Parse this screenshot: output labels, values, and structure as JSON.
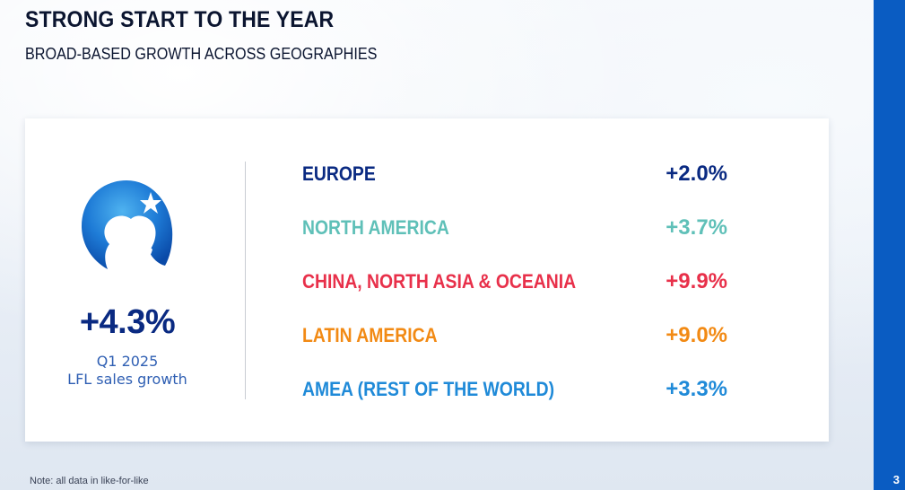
{
  "header": {
    "title": "STRONG START TO THE YEAR",
    "subtitle": "BROAD-BASED GROWTH ACROSS GEOGRAPHIES"
  },
  "summary": {
    "logo_icon": "danone-child-star-logo-icon",
    "value": "+4.3%",
    "period": "Q1 2025",
    "caption": "LFL sales growth"
  },
  "regions": [
    {
      "name": "EUROPE",
      "value": "+2.0%",
      "color": "#0a2a82"
    },
    {
      "name": "NORTH AMERICA",
      "value": "+3.7%",
      "color": "#5fc0b8"
    },
    {
      "name": "CHINA, NORTH ASIA & OCEANIA",
      "value": "+9.9%",
      "color": "#e8304a"
    },
    {
      "name": "LATIN AMERICA",
      "value": "+9.0%",
      "color": "#f28a14"
    },
    {
      "name": "AMEA (REST OF THE WORLD)",
      "value": "+3.3%",
      "color": "#1f8ad8"
    }
  ],
  "footnote": "Note: all data in like-for-like",
  "page_number": "3",
  "colors": {
    "accent_blue": "#0a5cc2",
    "headline_blue": "#0a2a82",
    "caption_blue": "#2f5fb3"
  }
}
